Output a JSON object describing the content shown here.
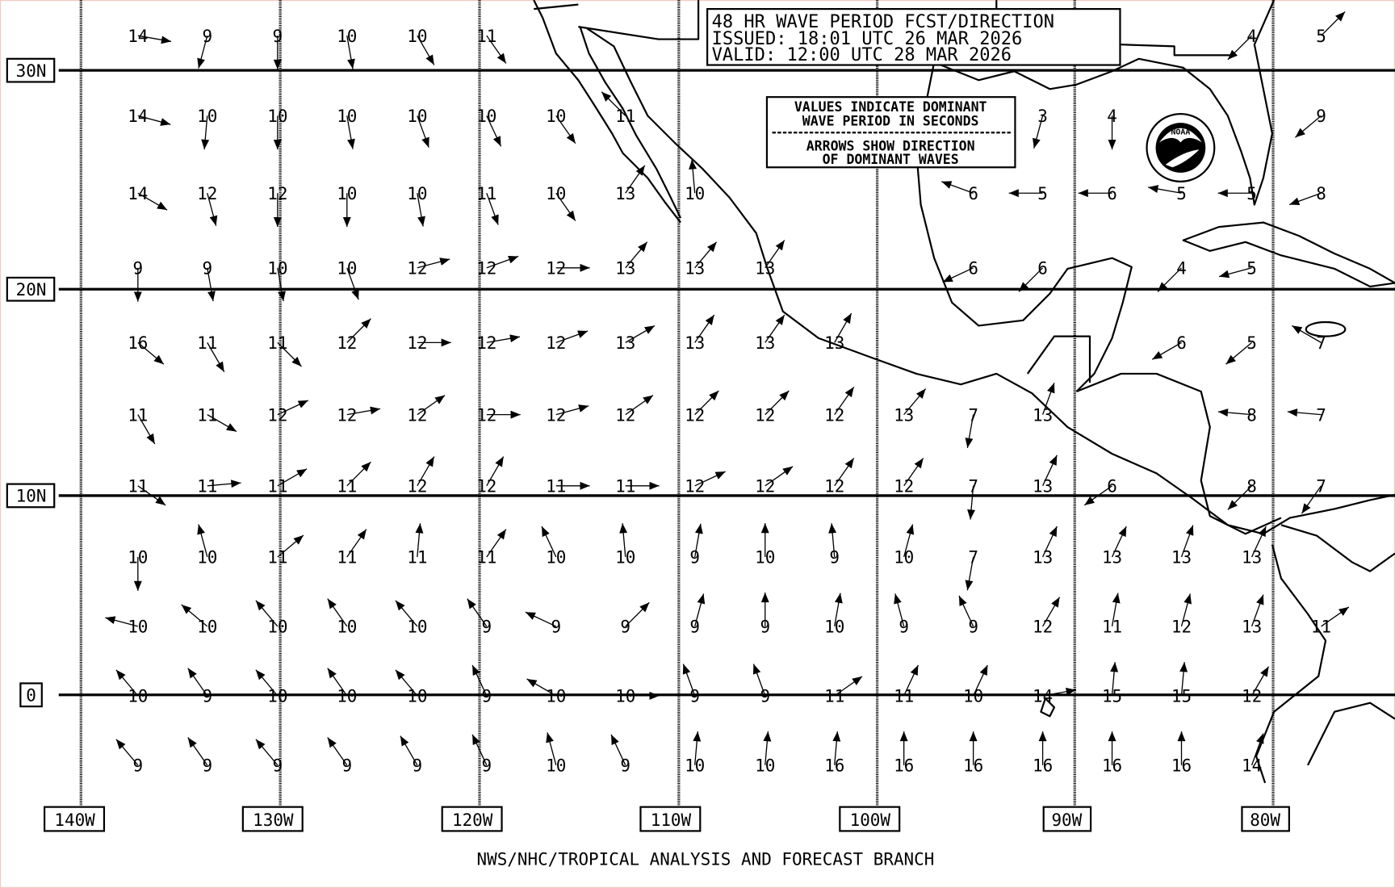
{
  "title_box": {
    "line1": "48 HR WAVE PERIOD FCST/DIRECTION",
    "line2": "ISSUED:  18:01 UTC 26 MAR 2026",
    "line3": "VALID:   12:00 UTC 28 MAR 2026"
  },
  "legend_box": {
    "line1": "VALUES INDICATE DOMINANT",
    "line2": "WAVE PERIOD IN SECONDS",
    "line3": "ARROWS SHOW DIRECTION",
    "line4": "OF DOMINANT WAVES"
  },
  "lat_labels": [
    "30N",
    "20N",
    "10N",
    "0"
  ],
  "lon_labels": [
    "140W",
    "130W",
    "120W",
    "110W",
    "100W",
    "90W",
    "80W"
  ],
  "footer": "NWS/NHC/TROPICAL ANALYSIS AND FORECAST BRANCH",
  "logo": {
    "text": "NOAA",
    "icon": "noaa-logo"
  },
  "arrow_direction_note": "direction in degrees toward which waves travel (0 = north)",
  "rows": [
    [
      [
        14,
        100
      ],
      [
        9,
        195
      ],
      [
        9,
        180
      ],
      [
        10,
        170
      ],
      [
        10,
        150
      ],
      [
        11,
        145
      ],
      null,
      null,
      null,
      null,
      null,
      null,
      null,
      null,
      null,
      null,
      [
        4,
        225
      ],
      [
        5,
        45
      ]
    ],
    [
      [
        14,
        105
      ],
      [
        10,
        185
      ],
      [
        10,
        180
      ],
      [
        10,
        170
      ],
      [
        10,
        160
      ],
      [
        10,
        155
      ],
      [
        10,
        145
      ],
      [
        11,
        315
      ],
      null,
      null,
      null,
      null,
      null,
      [
        3,
        195
      ],
      [
        4,
        180
      ],
      null,
      null,
      [
        9,
        230
      ]
    ],
    [
      [
        14,
        120
      ],
      [
        12,
        165
      ],
      [
        12,
        180
      ],
      [
        10,
        180
      ],
      [
        10,
        170
      ],
      [
        11,
        160
      ],
      [
        10,
        145
      ],
      [
        13,
        35
      ],
      [
        10,
        355
      ],
      null,
      null,
      null,
      [
        6,
        290
      ],
      [
        5,
        270
      ],
      [
        6,
        270
      ],
      [
        5,
        280
      ],
      [
        5,
        270
      ],
      [
        8,
        250
      ]
    ],
    [
      [
        9,
        180
      ],
      [
        9,
        170
      ],
      [
        10,
        170
      ],
      [
        10,
        160
      ],
      [
        12,
        75
      ],
      [
        12,
        70
      ],
      [
        12,
        90
      ],
      [
        13,
        40
      ],
      [
        13,
        40
      ],
      [
        13,
        35
      ],
      null,
      null,
      [
        6,
        245
      ],
      [
        6,
        225
      ],
      null,
      [
        4,
        225
      ],
      [
        5,
        255
      ],
      null
    ],
    [
      [
        16,
        130
      ],
      [
        11,
        150
      ],
      [
        11,
        135
      ],
      [
        12,
        45
      ],
      [
        12,
        90
      ],
      [
        12,
        80
      ],
      [
        12,
        70
      ],
      [
        13,
        60
      ],
      [
        13,
        35
      ],
      [
        13,
        35
      ],
      [
        13,
        30
      ],
      null,
      null,
      null,
      null,
      [
        6,
        240
      ],
      [
        5,
        230
      ],
      [
        7,
        300
      ]
    ],
    [
      [
        11,
        150
      ],
      [
        11,
        120
      ],
      [
        12,
        65
      ],
      [
        12,
        80
      ],
      [
        12,
        55
      ],
      [
        12,
        90
      ],
      [
        12,
        75
      ],
      [
        12,
        55
      ],
      [
        12,
        45
      ],
      [
        12,
        45
      ],
      [
        12,
        35
      ],
      [
        13,
        40
      ],
      [
        7,
        190
      ],
      [
        13,
        20
      ],
      null,
      null,
      [
        8,
        275
      ],
      [
        7,
        275
      ]
    ],
    [
      [
        11,
        125
      ],
      [
        11,
        85
      ],
      [
        11,
        60
      ],
      [
        11,
        45
      ],
      [
        12,
        30
      ],
      [
        12,
        30
      ],
      [
        11,
        90
      ],
      [
        11,
        90
      ],
      [
        12,
        65
      ],
      [
        12,
        55
      ],
      [
        12,
        35
      ],
      [
        12,
        35
      ],
      [
        7,
        185
      ],
      [
        13,
        25
      ],
      [
        6,
        235
      ],
      null,
      [
        8,
        225
      ],
      [
        7,
        215
      ]
    ],
    [
      [
        10,
        180
      ],
      [
        10,
        345
      ],
      [
        11,
        50
      ],
      [
        11,
        35
      ],
      [
        11,
        5
      ],
      [
        11,
        35
      ],
      [
        10,
        335
      ],
      [
        10,
        355
      ],
      [
        9,
        10
      ],
      [
        10,
        0
      ],
      [
        9,
        355
      ],
      [
        10,
        15
      ],
      [
        7,
        190
      ],
      [
        13,
        25
      ],
      [
        13,
        25
      ],
      [
        13,
        20
      ],
      [
        13,
        25
      ],
      null
    ],
    [
      [
        10,
        285
      ],
      [
        10,
        310
      ],
      [
        10,
        320
      ],
      [
        10,
        325
      ],
      [
        10,
        320
      ],
      [
        9,
        325
      ],
      [
        9,
        295
      ],
      [
        9,
        45
      ],
      [
        9,
        15
      ],
      [
        9,
        0
      ],
      [
        10,
        10
      ],
      [
        9,
        345
      ],
      [
        9,
        335
      ],
      [
        12,
        30
      ],
      [
        11,
        10
      ],
      [
        12,
        15
      ],
      [
        13,
        20
      ],
      [
        11,
        55
      ]
    ],
    [
      [
        10,
        320
      ],
      [
        9,
        325
      ],
      [
        10,
        320
      ],
      [
        10,
        325
      ],
      [
        10,
        320
      ],
      [
        9,
        335
      ],
      [
        10,
        300
      ],
      [
        10,
        90
      ],
      [
        9,
        340
      ],
      [
        9,
        340
      ],
      [
        11,
        55
      ],
      [
        11,
        25
      ],
      [
        10,
        25
      ],
      [
        14,
        80
      ],
      [
        15,
        5
      ],
      [
        15,
        5
      ],
      [
        12,
        30
      ],
      null
    ],
    [
      [
        9,
        320
      ],
      [
        9,
        325
      ],
      [
        9,
        320
      ],
      [
        9,
        325
      ],
      [
        9,
        330
      ],
      [
        9,
        335
      ],
      [
        10,
        345
      ],
      [
        9,
        335
      ],
      [
        10,
        5
      ],
      [
        10,
        5
      ],
      [
        16,
        5
      ],
      [
        16,
        0
      ],
      [
        16,
        0
      ],
      [
        16,
        0
      ],
      [
        16,
        0
      ],
      [
        16,
        0
      ],
      [
        14,
        20
      ],
      null
    ]
  ]
}
